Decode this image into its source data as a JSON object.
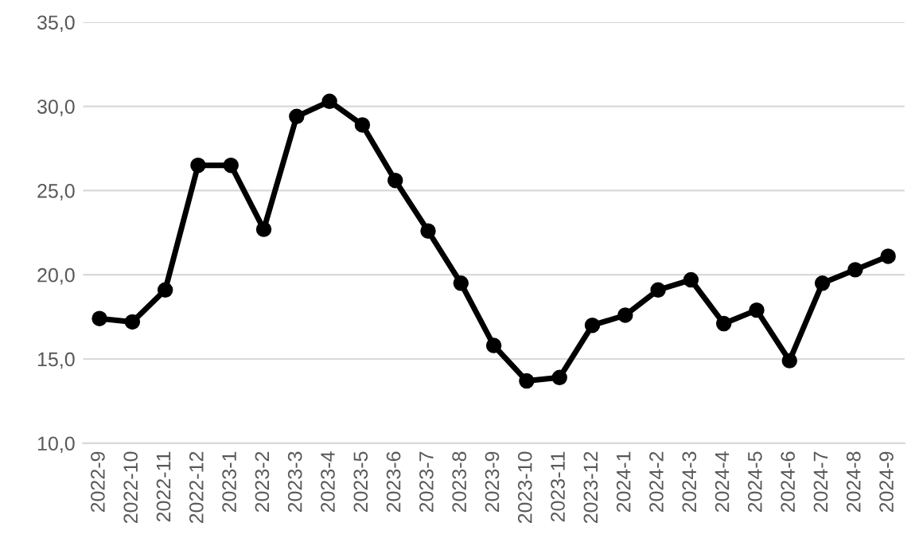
{
  "chart_data": {
    "type": "line",
    "categories": [
      "2022-9",
      "2022-10",
      "2022-11",
      "2022-12",
      "2023-1",
      "2023-2",
      "2023-3",
      "2023-4",
      "2023-5",
      "2023-6",
      "2023-7",
      "2023-8",
      "2023-9",
      "2023-10",
      "2023-11",
      "2023-12",
      "2024-1",
      "2024-2",
      "2024-3",
      "2024-4",
      "2024-5",
      "2024-6",
      "2024-7",
      "2024-8",
      "2024-9"
    ],
    "series": [
      {
        "color": "#000000",
        "values": [
          17.4,
          17.2,
          19.1,
          26.5,
          26.5,
          22.7,
          29.4,
          30.3,
          28.9,
          25.6,
          22.6,
          19.5,
          15.8,
          13.7,
          13.9,
          17.0,
          17.6,
          19.1,
          19.7,
          17.1,
          17.9,
          14.9,
          19.5,
          20.3,
          21.1
        ]
      }
    ],
    "ylim": [
      10,
      35
    ],
    "yticks": [
      {
        "value": 10,
        "label": "10,0"
      },
      {
        "value": 15,
        "label": "15,0"
      },
      {
        "value": 20,
        "label": "20,0"
      },
      {
        "value": 25,
        "label": "25,0"
      },
      {
        "value": 30,
        "label": "30,0"
      },
      {
        "value": 35,
        "label": "35,0"
      }
    ],
    "grid": "y",
    "marker": "circle",
    "line_style": "solid",
    "legend": false
  }
}
